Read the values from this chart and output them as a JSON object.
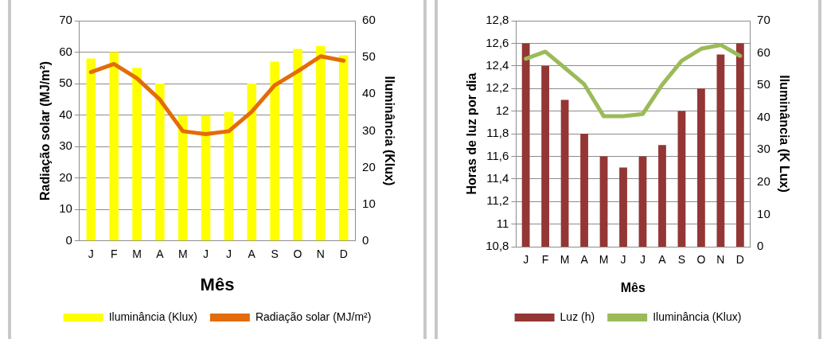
{
  "chart_data": [
    {
      "type": "bar",
      "categories": [
        "J",
        "F",
        "M",
        "A",
        "M",
        "J",
        "J",
        "A",
        "S",
        "O",
        "N",
        "D"
      ],
      "xlabel": "Mês",
      "ylabel": "Radiação solar (MJ/m²)",
      "y2label": "Iluminância (Klux)",
      "series": [
        {
          "name": "Iluminância (Klux)",
          "color": "#ffff00",
          "values": [
            58,
            60,
            55,
            50,
            40,
            40,
            41,
            50,
            57,
            61,
            62,
            59
          ]
        },
        {
          "name": "Radiação solar (MJ/m²)",
          "type": "line",
          "axis": "y2",
          "color": "#e36c09",
          "values": [
            46,
            48.2,
            44.3,
            38.5,
            29.9,
            29.1,
            29.9,
            35.2,
            42.4,
            46.2,
            50.3,
            49.1
          ]
        }
      ],
      "ylim": [
        0,
        70
      ],
      "yticks": [
        0,
        10,
        20,
        30,
        40,
        50,
        60,
        70
      ],
      "y2lim": [
        0,
        60
      ],
      "y2ticks": [
        0,
        10,
        20,
        30,
        40,
        50,
        60
      ],
      "grid": "y",
      "legend": "bottom",
      "marker": "none"
    },
    {
      "type": "bar",
      "categories": [
        "J",
        "F",
        "M",
        "A",
        "M",
        "J",
        "J",
        "A",
        "S",
        "O",
        "N",
        "D"
      ],
      "xlabel": "Mês",
      "ylabel": "Horas de luz por dia",
      "y2label": "Iluminância (K Lux)",
      "series": [
        {
          "name": "Luz (h)",
          "color": "#943634",
          "values": [
            12.6,
            12.4,
            12.1,
            11.8,
            11.6,
            11.5,
            11.6,
            11.7,
            12.0,
            12.2,
            12.5,
            12.6
          ]
        },
        {
          "name": "Iluminância (Klux)",
          "type": "line",
          "axis": "y2",
          "color": "#9bbb59",
          "values": [
            58.2,
            60.4,
            55.4,
            50.3,
            40.4,
            40.4,
            41.1,
            50.2,
            57.6,
            61.3,
            62.5,
            59.1
          ]
        }
      ],
      "ylim": [
        10.8,
        12.8
      ],
      "yticks": [
        {
          "value": 10.8,
          "label": "10,8"
        },
        {
          "value": 11,
          "label": "11"
        },
        {
          "value": 11.2,
          "label": "11,2"
        },
        {
          "value": 11.4,
          "label": "11,4"
        },
        {
          "value": 11.6,
          "label": "11,6"
        },
        {
          "value": 11.8,
          "label": "11,8"
        },
        {
          "value": 12,
          "label": "12"
        },
        {
          "value": 12.2,
          "label": "12,2"
        },
        {
          "value": 12.4,
          "label": "12,4"
        },
        {
          "value": 12.6,
          "label": "12,6"
        },
        {
          "value": 12.8,
          "label": "12,8"
        }
      ],
      "y2lim": [
        0,
        70
      ],
      "y2ticks": [
        0,
        10,
        20,
        30,
        40,
        50,
        60,
        70
      ],
      "grid": "y",
      "legend": "bottom",
      "marker": "none"
    }
  ]
}
